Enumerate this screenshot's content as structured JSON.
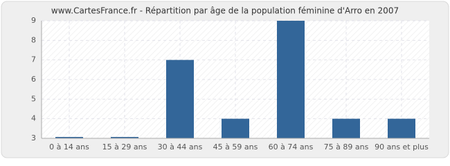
{
  "chart_data": {
    "type": "bar",
    "title": "www.CartesFrance.fr - Répartition par âge de la population féminine d'Arro en 2007",
    "categories": [
      "0 à 14 ans",
      "15 à 29 ans",
      "30 à 44 ans",
      "45 à 59 ans",
      "60 à 74 ans",
      "75 à 89 ans",
      "90 ans et plus"
    ],
    "values": [
      3,
      3,
      7,
      4,
      9,
      4,
      4
    ],
    "color": "#336699",
    "ylim": [
      3,
      9
    ],
    "yticks": [
      3,
      4,
      5,
      6,
      7,
      8,
      9
    ],
    "grid": true
  }
}
